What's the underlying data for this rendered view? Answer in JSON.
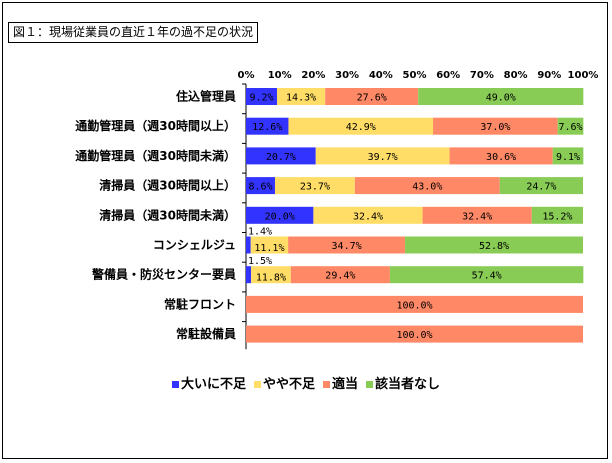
{
  "chart_data": {
    "type": "bar",
    "orientation": "horizontal",
    "stacked": true,
    "percent": true,
    "title": "図１：現場従業員の直近１年の過不足の状況",
    "xlim": [
      0,
      100
    ],
    "x_ticks": [
      "0%",
      "10%",
      "20%",
      "30%",
      "40%",
      "50%",
      "60%",
      "70%",
      "80%",
      "90%",
      "100%"
    ],
    "categories": [
      "住込管理員",
      "通勤管理員（週30時間以上）",
      "通勤管理員（週30時間未満）",
      "清掃員（週30時間以上）",
      "清掃員（週30時間未満）",
      "コンシェルジュ",
      "警備員・防災センター要員",
      "常駐フロント",
      "常駐設備員"
    ],
    "series": [
      {
        "name": "大いに不足",
        "color": "#3333ff",
        "values": [
          9.2,
          12.6,
          20.7,
          8.6,
          20.0,
          1.4,
          1.5,
          0,
          0
        ],
        "labels": [
          "9.2%",
          "12.6%",
          "20.7%",
          "8.6%",
          "20.0%",
          "1.4%",
          "1.5%",
          "",
          ""
        ]
      },
      {
        "name": "やや不足",
        "color": "#ffdd66",
        "values": [
          14.3,
          42.9,
          39.7,
          23.7,
          32.4,
          11.1,
          11.8,
          0,
          0
        ],
        "labels": [
          "14.3%",
          "42.9%",
          "39.7%",
          "23.7%",
          "32.4%",
          "11.1%",
          "11.8%",
          "",
          ""
        ]
      },
      {
        "name": "適当",
        "color": "#ff8866",
        "values": [
          27.6,
          37.0,
          30.6,
          43.0,
          32.4,
          34.7,
          29.4,
          100.0,
          100.0
        ],
        "labels": [
          "27.6%",
          "37.0%",
          "30.6%",
          "43.0%",
          "32.4%",
          "34.7%",
          "29.4%",
          "100.0%",
          "100.0%"
        ]
      },
      {
        "name": "該当者なし",
        "color": "#88cc55",
        "values": [
          49.0,
          7.6,
          9.1,
          24.7,
          15.2,
          52.8,
          57.4,
          0,
          0
        ],
        "labels": [
          "49.0%",
          "7.6%",
          "9.1%",
          "24.7%",
          "15.2%",
          "52.8%",
          "57.4%",
          "",
          ""
        ]
      }
    ],
    "legend_position": "bottom",
    "grid": false
  }
}
